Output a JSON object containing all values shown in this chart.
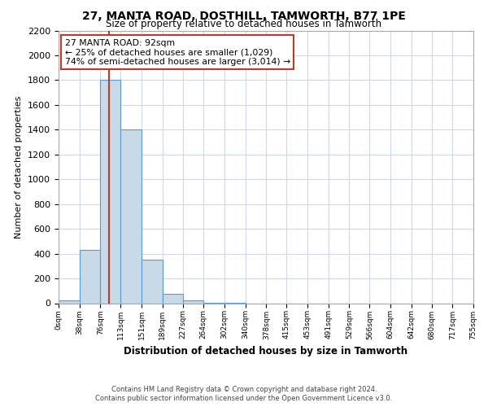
{
  "title": "27, MANTA ROAD, DOSTHILL, TAMWORTH, B77 1PE",
  "subtitle": "Size of property relative to detached houses in Tamworth",
  "xlabel": "Distribution of detached houses by size in Tamworth",
  "ylabel": "Number of detached properties",
  "bin_edges": [
    0,
    38,
    76,
    113,
    151,
    189,
    227,
    264,
    302,
    340,
    378,
    415,
    453,
    491,
    529,
    566,
    604,
    642,
    680,
    717,
    755
  ],
  "bin_labels": [
    "0sqm",
    "38sqm",
    "76sqm",
    "113sqm",
    "151sqm",
    "189sqm",
    "227sqm",
    "264sqm",
    "302sqm",
    "340sqm",
    "378sqm",
    "415sqm",
    "453sqm",
    "491sqm",
    "529sqm",
    "566sqm",
    "604sqm",
    "642sqm",
    "680sqm",
    "717sqm",
    "755sqm"
  ],
  "bar_heights": [
    20,
    430,
    1800,
    1400,
    350,
    75,
    25,
    5,
    2,
    0,
    0,
    0,
    0,
    0,
    0,
    0,
    0,
    0,
    0,
    0
  ],
  "bar_color": "#c8d9e8",
  "bar_edge_color": "#5b9bd5",
  "vertical_line_x": 92,
  "vertical_line_color": "#c0392b",
  "ylim": [
    0,
    2200
  ],
  "yticks": [
    0,
    200,
    400,
    600,
    800,
    1000,
    1200,
    1400,
    1600,
    1800,
    2000,
    2200
  ],
  "annotation_title": "27 MANTA ROAD: 92sqm",
  "annotation_line1": "← 25% of detached houses are smaller (1,029)",
  "annotation_line2": "74% of semi-detached houses are larger (3,014) →",
  "annotation_box_color": "#ffffff",
  "annotation_box_edge_color": "#c0392b",
  "footer_line1": "Contains HM Land Registry data © Crown copyright and database right 2024.",
  "footer_line2": "Contains public sector information licensed under the Open Government Licence v3.0.",
  "background_color": "#ffffff",
  "grid_color": "#d0d8e8"
}
